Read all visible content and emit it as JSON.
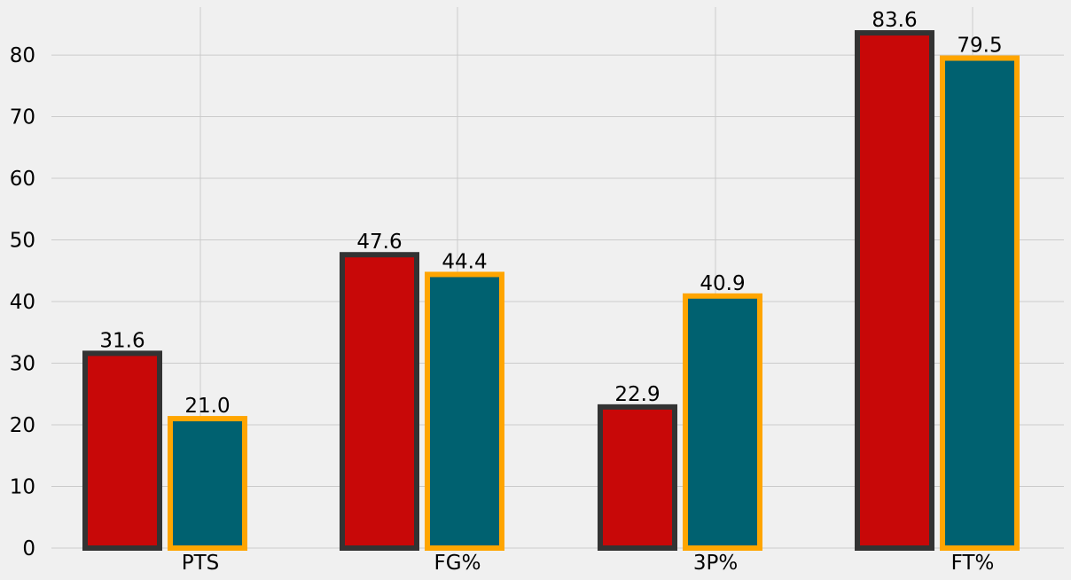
{
  "chart_data": {
    "type": "bar",
    "categories": [
      "PTS",
      "FG%",
      "3P%",
      "FT%"
    ],
    "series": [
      {
        "values": [
          31.6,
          47.6,
          22.9,
          83.6
        ],
        "labels": [
          "31.6",
          "47.6",
          "22.9",
          "83.6"
        ],
        "fill": "#c80808",
        "edge": "#333333"
      },
      {
        "values": [
          21.0,
          44.4,
          40.9,
          79.5
        ],
        "labels": [
          "21.0",
          "44.4",
          "40.9",
          "79.5"
        ],
        "fill": "#006170",
        "edge": "#ffa500"
      }
    ],
    "ylim": [
      0,
      87.78
    ],
    "yticks": [
      0,
      10,
      20,
      30,
      40,
      50,
      60,
      70,
      80
    ],
    "ytick_labels": [
      "0",
      "10",
      "20",
      "30",
      "40",
      "50",
      "60",
      "70",
      "80"
    ],
    "grid": true,
    "title": "",
    "xlabel": "",
    "ylabel": ""
  }
}
